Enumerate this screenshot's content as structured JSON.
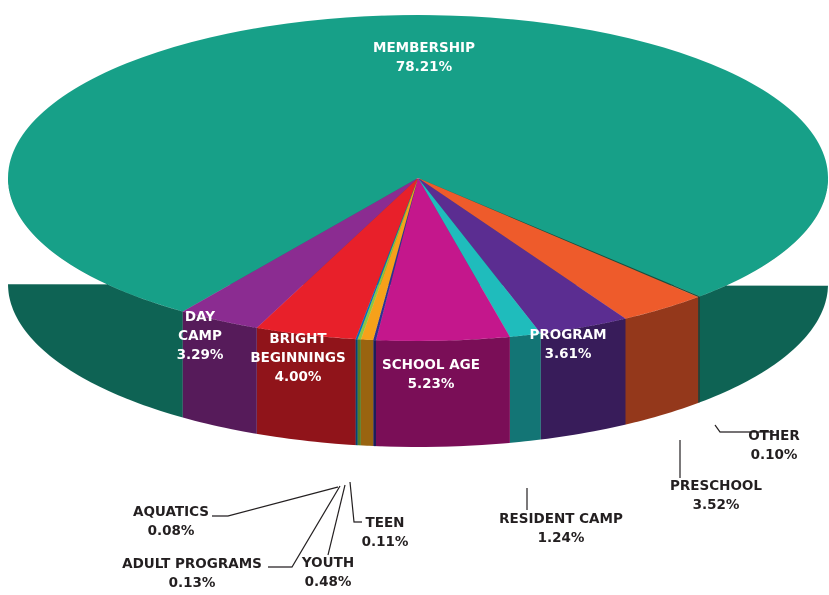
{
  "chart_data": {
    "type": "pie",
    "style": "3d",
    "title": "",
    "slices": [
      {
        "label": "MEMBERSHIP",
        "lines": [
          "MEMBERSHIP"
        ],
        "value": 78.21,
        "value_label": "78.21%",
        "color": "#17a088"
      },
      {
        "label": "OTHER",
        "lines": [
          "OTHER"
        ],
        "value": 0.1,
        "value_label": "0.10%",
        "color": "#1e4d3c"
      },
      {
        "label": "PRESCHOOL",
        "lines": [
          "PRESCHOOL"
        ],
        "value": 3.52,
        "value_label": "3.52%",
        "color": "#ee5b2b"
      },
      {
        "label": "PROGRAM",
        "lines": [
          "PROGRAM"
        ],
        "value": 3.61,
        "value_label": "3.61%",
        "color": "#5b2d91"
      },
      {
        "label": "RESIDENT CAMP",
        "lines": [
          "RESIDENT CAMP"
        ],
        "value": 1.24,
        "value_label": "1.24%",
        "color": "#1fbcbc"
      },
      {
        "label": "SCHOOL AGE",
        "lines": [
          "SCHOOL AGE"
        ],
        "value": 5.23,
        "value_label": "5.23%",
        "color": "#c4178c"
      },
      {
        "label": "TEEN",
        "lines": [
          "TEEN"
        ],
        "value": 0.11,
        "value_label": "0.11%",
        "color": "#2e3192"
      },
      {
        "label": "YOUTH",
        "lines": [
          "YOUTH"
        ],
        "value": 0.48,
        "value_label": "0.48%",
        "color": "#f6a11a"
      },
      {
        "label": "ADULT PROGRAMS",
        "lines": [
          "ADULT PROGRAMS"
        ],
        "value": 0.13,
        "value_label": "0.13%",
        "color": "#8dc63f"
      },
      {
        "label": "AQUATICS",
        "lines": [
          "AQUATICS"
        ],
        "value": 0.08,
        "value_label": "0.08%",
        "color": "#0072bc"
      },
      {
        "label": "BRIGHT BEGINNINGS",
        "lines": [
          "BRIGHT",
          "BEGINNINGS"
        ],
        "value": 4.0,
        "value_label": "4.00%",
        "color": "#e8202a"
      },
      {
        "label": "DAY CAMP",
        "lines": [
          "DAY",
          "CAMP"
        ],
        "value": 3.29,
        "value_label": "3.29%",
        "color": "#8b2c91"
      }
    ]
  }
}
